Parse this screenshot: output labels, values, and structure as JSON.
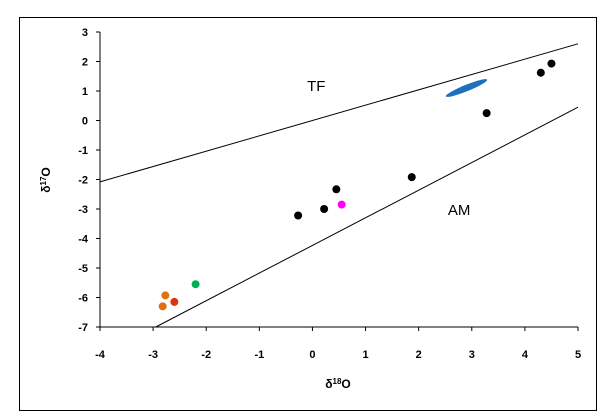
{
  "chart_data": {
    "type": "scatter",
    "xlabel_main": "δ",
    "xlabel_sup": "18",
    "xlabel_tail": "O",
    "ylabel_main": "δ",
    "ylabel_sup": "17",
    "ylabel_tail": "O",
    "xlim": [
      -4,
      5
    ],
    "ylim": [
      -7,
      3
    ],
    "xticks": [
      -4,
      -3,
      -2,
      -1,
      0,
      1,
      2,
      3,
      4,
      5
    ],
    "yticks": [
      3,
      2,
      1,
      0,
      -1,
      -2,
      -3,
      -4,
      -5,
      -6,
      -7
    ],
    "grid": false,
    "lines": [
      {
        "label": "TF",
        "x": [
          -4,
          5
        ],
        "y": [
          -2.08,
          2.6
        ],
        "label_at": [
          -0.1,
          1.0
        ]
      },
      {
        "label": "AM",
        "x": [
          -2.95,
          5
        ],
        "y": [
          -7.0,
          0.45
        ],
        "label_at": [
          2.55,
          -3.2
        ]
      }
    ],
    "ellipse": {
      "cx": 2.9,
      "cy": 1.1,
      "rx": 0.42,
      "ry": 0.11,
      "angle_deg": -22,
      "color": "#1f6fbf"
    },
    "points": [
      {
        "x": 4.5,
        "y": 1.93,
        "color": "#000000"
      },
      {
        "x": 4.3,
        "y": 1.62,
        "color": "#000000"
      },
      {
        "x": 3.28,
        "y": 0.25,
        "color": "#000000"
      },
      {
        "x": 1.87,
        "y": -1.92,
        "color": "#000000"
      },
      {
        "x": 0.45,
        "y": -2.33,
        "color": "#000000"
      },
      {
        "x": 0.22,
        "y": -3.0,
        "color": "#000000"
      },
      {
        "x": -0.27,
        "y": -3.22,
        "color": "#000000"
      },
      {
        "x": 0.55,
        "y": -2.85,
        "color": "#ff00ff"
      },
      {
        "x": -2.2,
        "y": -5.55,
        "color": "#00b050"
      },
      {
        "x": -2.6,
        "y": -6.15,
        "color": "#e03010"
      },
      {
        "x": -2.77,
        "y": -5.93,
        "color": "#e07010"
      },
      {
        "x": -2.82,
        "y": -6.3,
        "color": "#e07010"
      }
    ]
  }
}
